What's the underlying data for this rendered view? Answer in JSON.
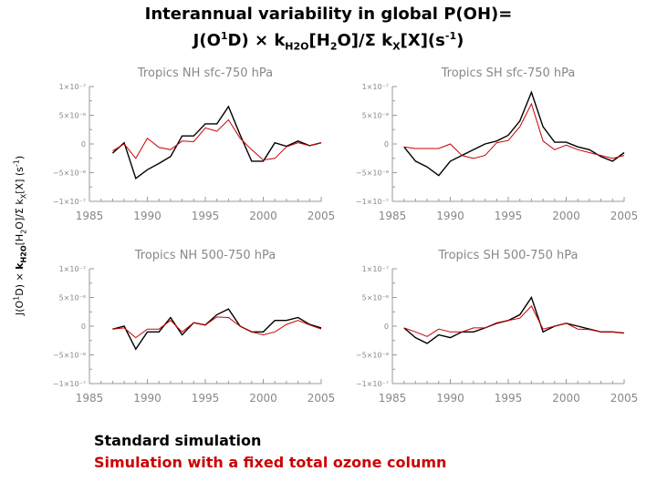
{
  "page": {
    "title_line1": "Interannual variability in global P(OH)=",
    "title_line2_parts": [
      "J(O",
      "1",
      "D) × k",
      "H2O",
      "[H",
      "2",
      "O]/Σ k",
      "X",
      "[X](s",
      "-1",
      ")"
    ],
    "ylabel_parts": [
      "J(O",
      "1",
      "D) × ",
      "k",
      "H2O",
      "[H",
      "2",
      "O]/Σ k",
      "X",
      "[X] (s",
      "-1",
      ")"
    ],
    "legend": {
      "standard": "Standard simulation",
      "fixed": "Simulation with a fixed total ozone column"
    }
  },
  "colors": {
    "standard": "#000000",
    "fixed": "#cc0000",
    "axis": "#999999"
  },
  "chart_data": [
    {
      "type": "line",
      "title": "Tropics  NH sfc-750 hPa",
      "xlim": [
        1985,
        2005
      ],
      "ylim": [
        -1e-07,
        1e-07
      ],
      "xticks": [
        "1985",
        "1990",
        "1995",
        "2000",
        "2005"
      ],
      "yticks": [
        "1×10⁻⁷",
        "5×10⁻⁸",
        "0",
        "−5×10⁻⁸",
        "−1×10⁻⁷"
      ],
      "x": [
        1987,
        1988,
        1989,
        1990,
        1991,
        1992,
        1993,
        1994,
        1995,
        1996,
        1997,
        1998,
        1999,
        2000,
        2001,
        2002,
        2003,
        2004,
        2005
      ],
      "series": [
        {
          "name": "Standard simulation",
          "values": [
            -1.6e-08,
            2e-09,
            -6e-08,
            -4.5e-08,
            -3.4e-08,
            -2.2e-08,
            1.4e-08,
            1.4e-08,
            3.5e-08,
            3.5e-08,
            6.5e-08,
            1.6e-08,
            -3e-08,
            -3e-08,
            2e-09,
            -4e-09,
            5e-09,
            -3e-09,
            2e-09
          ]
        },
        {
          "name": "Simulation with a fixed total ozone column",
          "values": [
            -1.2e-08,
            0,
            -2.5e-08,
            1e-08,
            -6e-09,
            -1e-08,
            5e-09,
            4e-09,
            2.8e-08,
            2.2e-08,
            4.2e-08,
            1e-08,
            -1e-08,
            -2.8e-08,
            -2.5e-08,
            -5e-09,
            2e-09,
            -3e-09,
            2e-09
          ]
        }
      ]
    },
    {
      "type": "line",
      "title": "Tropics  SH sfc-750 hPa",
      "xlim": [
        1985,
        2005
      ],
      "ylim": [
        -1e-07,
        1e-07
      ],
      "xticks": [
        "1985",
        "1990",
        "1995",
        "2000",
        "2005"
      ],
      "yticks": [
        "1×10⁻⁷",
        "5×10⁻⁸",
        "0",
        "−5×10⁻⁸",
        "−1×10⁻⁷"
      ],
      "x": [
        1986,
        1987,
        1988,
        1989,
        1990,
        1991,
        1992,
        1993,
        1994,
        1995,
        1996,
        1997,
        1998,
        1999,
        2000,
        2001,
        2002,
        2003,
        2004,
        2005
      ],
      "series": [
        {
          "name": "Standard simulation",
          "values": [
            -5e-09,
            -3e-08,
            -4e-08,
            -5.5e-08,
            -3e-08,
            -2e-08,
            -1e-08,
            0,
            5e-09,
            1.5e-08,
            4e-08,
            9e-08,
            3e-08,
            3e-09,
            3e-09,
            -5e-09,
            -1e-08,
            -2.2e-08,
            -3e-08,
            -1.5e-08
          ]
        },
        {
          "name": "Simulation with a fixed total ozone column",
          "values": [
            -5e-09,
            -8e-09,
            -8e-09,
            -8e-09,
            0,
            -2e-08,
            -2.5e-08,
            -2e-08,
            2e-09,
            6e-09,
            3e-08,
            7e-08,
            5e-09,
            -1e-08,
            -2e-09,
            -1e-08,
            -1.5e-08,
            -2e-08,
            -2.5e-08,
            -2e-08
          ]
        }
      ]
    },
    {
      "type": "line",
      "title": "Tropics  NH 500-750 hPa",
      "xlim": [
        1985,
        2005
      ],
      "ylim": [
        -1e-07,
        1e-07
      ],
      "xticks": [
        "1985",
        "1990",
        "1995",
        "2000",
        "2005"
      ],
      "yticks": [
        "1×10⁻⁷",
        "5×10⁻⁸",
        "0",
        "−5×10⁻⁸",
        "−1×10⁻⁷"
      ],
      "x": [
        1987,
        1988,
        1989,
        1990,
        1991,
        1992,
        1993,
        1994,
        1995,
        1996,
        1997,
        1998,
        1999,
        2000,
        2001,
        2002,
        2003,
        2004,
        2005
      ],
      "series": [
        {
          "name": "Standard simulation",
          "values": [
            -5e-09,
            0,
            -4e-08,
            -1e-08,
            -1e-08,
            1.5e-08,
            -1.5e-08,
            6e-09,
            2e-09,
            2e-08,
            3e-08,
            0,
            -1e-08,
            -1e-08,
            1e-08,
            1e-08,
            1.5e-08,
            3e-09,
            -3e-09
          ]
        },
        {
          "name": "Simulation with a fixed total ozone column",
          "values": [
            -5e-09,
            -3e-09,
            -2e-08,
            -5e-09,
            -5e-09,
            1e-08,
            -1e-08,
            6e-09,
            2e-09,
            1.6e-08,
            1.5e-08,
            0,
            -1e-08,
            -1.5e-08,
            -1e-08,
            3e-09,
            1e-08,
            2e-09,
            -5e-09
          ]
        }
      ]
    },
    {
      "type": "line",
      "title": "Tropics  SH 500-750 hPa",
      "xlim": [
        1985,
        2005
      ],
      "ylim": [
        -1e-07,
        1e-07
      ],
      "xticks": [
        "1985",
        "1990",
        "1995",
        "2000",
        "2005"
      ],
      "yticks": [
        "1×10⁻⁷",
        "5×10⁻⁸",
        "0",
        "−5×10⁻⁸",
        "−1×10⁻⁷"
      ],
      "x": [
        1986,
        1987,
        1988,
        1989,
        1990,
        1991,
        1992,
        1993,
        1994,
        1995,
        1996,
        1997,
        1998,
        1999,
        2000,
        2001,
        2002,
        2003,
        2004,
        2005
      ],
      "series": [
        {
          "name": "Standard simulation",
          "values": [
            -3e-09,
            -2e-08,
            -3e-08,
            -1.5e-08,
            -2e-08,
            -1e-08,
            -1e-08,
            -3e-09,
            5e-09,
            1e-08,
            2e-08,
            5e-08,
            -1e-08,
            0,
            5e-09,
            0,
            -5e-09,
            -1e-08,
            -1e-08,
            -1.2e-08
          ]
        },
        {
          "name": "Simulation with a fixed total ozone column",
          "values": [
            -3e-09,
            -1e-08,
            -1.8e-08,
            -5e-09,
            -1e-08,
            -1e-08,
            -3e-09,
            -3e-09,
            6e-09,
            1e-08,
            1.4e-08,
            3.5e-08,
            -5e-09,
            0,
            5e-09,
            -5e-09,
            -6e-09,
            -1e-08,
            -1e-08,
            -1.2e-08
          ]
        }
      ]
    }
  ]
}
